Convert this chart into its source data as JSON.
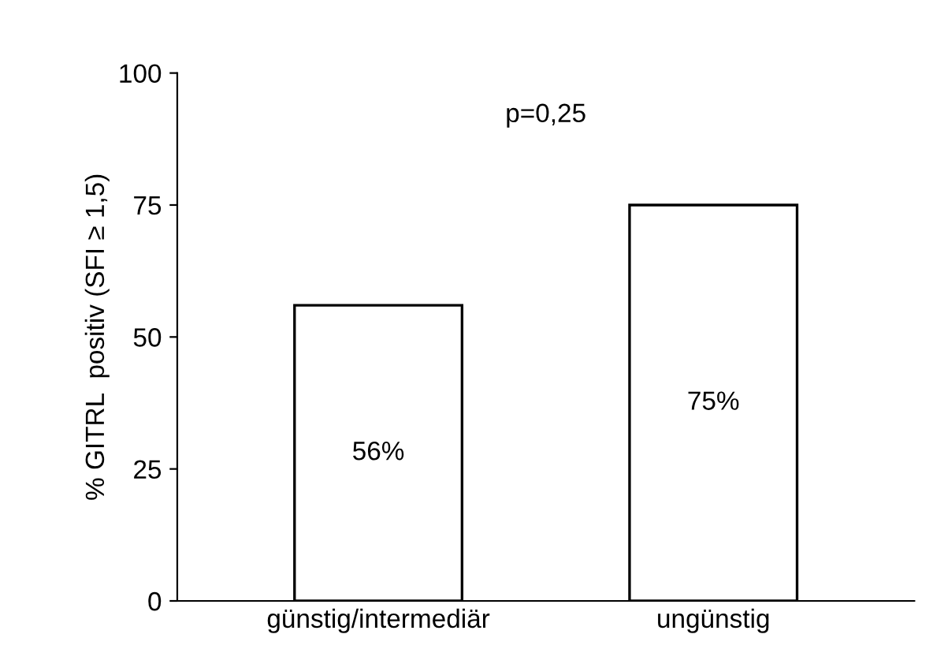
{
  "chart_data": {
    "type": "bar",
    "ylabel": "% GITRL  positiv (SFI ≥ 1,5)",
    "categories": [
      "günstig/intermediär",
      "ungünstig"
    ],
    "values": [
      56,
      75
    ],
    "value_labels": [
      "56%",
      "75%"
    ],
    "color": "#ffffff",
    "ylim": [
      0,
      100
    ],
    "yticks": [
      0,
      25,
      50,
      75,
      100
    ],
    "grid": false,
    "annotations": [
      "p=0,25"
    ]
  }
}
